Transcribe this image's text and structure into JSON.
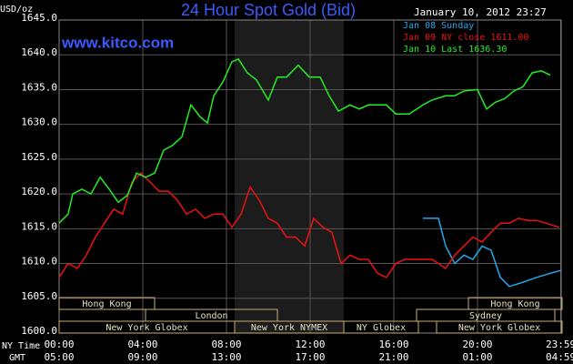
{
  "chart_data": {
    "type": "line",
    "title": "24 Hour Spot Gold (Bid)",
    "timestamp": "January 10, 2012 23:27",
    "source": "www.kitco.com",
    "ylabel": "USD/oz",
    "x_row_labels": [
      "NY Time",
      "GMT"
    ],
    "xlim": [
      0,
      24
    ],
    "xticks": [
      {
        "value": 0,
        "label": "00:00"
      },
      {
        "value": 4,
        "label": "04:00"
      },
      {
        "value": 8,
        "label": "08:00"
      },
      {
        "value": 12,
        "label": "12:00"
      },
      {
        "value": 16,
        "label": "16:00"
      },
      {
        "value": 20,
        "label": "20:00"
      },
      {
        "value": 23.98,
        "label": "23:59"
      }
    ],
    "gmt_ticks": [
      {
        "value": 0,
        "label": "05:00"
      },
      {
        "value": 4,
        "label": "09:00"
      },
      {
        "value": 8,
        "label": "13:00"
      },
      {
        "value": 12,
        "label": "17:00"
      },
      {
        "value": 16,
        "label": "21:00"
      },
      {
        "value": 20,
        "label": "01:00"
      },
      {
        "value": 23.98,
        "label": "04:59"
      }
    ],
    "ylim": [
      1600,
      1645
    ],
    "yticks": [
      {
        "value": 1600,
        "label": "1600.0"
      },
      {
        "value": 1605,
        "label": "1605.0"
      },
      {
        "value": 1610,
        "label": "1610.0"
      },
      {
        "value": 1615,
        "label": "1615.0"
      },
      {
        "value": 1620,
        "label": "1620.0"
      },
      {
        "value": 1625,
        "label": "1625.0"
      },
      {
        "value": 1630,
        "label": "1630.0"
      },
      {
        "value": 1635,
        "label": "1635.0"
      },
      {
        "value": 1640,
        "label": "1640.0"
      },
      {
        "value": 1645,
        "label": "1645.0"
      }
    ],
    "grid": true,
    "sessions": [
      "Hong Kong",
      "London",
      "New York Globex",
      "New York NYMEX",
      "NY Globex",
      "Sydney",
      "Hong Kong",
      "New York Globex"
    ],
    "series": [
      {
        "name": "Jan 08 Sunday",
        "color": "#22aaee",
        "x": [
          17.39,
          18.13,
          18.48,
          18.91,
          19.35,
          19.78,
          20.22,
          20.65,
          21.09,
          21.52,
          22.17,
          22.83,
          23.48,
          23.98
        ],
        "values": [
          1616.5,
          1616.5,
          1612.5,
          1610,
          1611.2,
          1610.6,
          1612.5,
          1611.9,
          1608,
          1606.7,
          1607.3,
          1608,
          1608.6,
          1609
        ]
      },
      {
        "name": "Jan 09 NY close 1611.00",
        "color": "#ee1111",
        "x": [
          0,
          0.43,
          0.87,
          1.3,
          1.74,
          2.17,
          2.61,
          3.04,
          3.48,
          3.91,
          4.35,
          4.78,
          5.22,
          5.65,
          6.09,
          6.52,
          6.96,
          7.39,
          7.83,
          8.26,
          8.7,
          9.13,
          9.57,
          10,
          10.43,
          10.87,
          11.3,
          11.74,
          12.17,
          12.61,
          13.04,
          13.48,
          13.91,
          14.35,
          14.78,
          15.22,
          15.65,
          16.09,
          16.52,
          17.17,
          17.83,
          18.48,
          18.91,
          19.35,
          19.78,
          20.22,
          20.65,
          21.09,
          21.52,
          21.96,
          22.39,
          22.83,
          23.26,
          23.91
        ],
        "values": [
          1608,
          1610,
          1609.3,
          1611.2,
          1613.8,
          1615.8,
          1617.8,
          1617.1,
          1621.7,
          1623,
          1621.7,
          1620.4,
          1620.4,
          1619.1,
          1617.1,
          1617.8,
          1616.5,
          1617.1,
          1617.1,
          1615.2,
          1617.1,
          1621,
          1619.1,
          1616.5,
          1615.8,
          1613.8,
          1613.8,
          1612.5,
          1616.5,
          1615.2,
          1614.5,
          1610,
          1611.2,
          1610.6,
          1610.6,
          1608.6,
          1608,
          1610,
          1610.6,
          1610.6,
          1610.6,
          1609.3,
          1611.2,
          1612.5,
          1613.8,
          1613.1,
          1614.5,
          1615.8,
          1615.8,
          1616.5,
          1616.2,
          1616.2,
          1615.8,
          1615.2
        ]
      },
      {
        "name": "Jan 10 Last 1636.30",
        "color": "#22ee22",
        "x": [
          0,
          0.43,
          0.65,
          1.09,
          1.52,
          1.96,
          2.39,
          2.83,
          3.26,
          3.7,
          4.13,
          4.57,
          5,
          5.43,
          5.87,
          6.3,
          6.74,
          7.09,
          7.39,
          7.83,
          8.26,
          8.57,
          9,
          9.43,
          10,
          10.43,
          10.87,
          11.43,
          11.96,
          12.48,
          12.91,
          13.35,
          13.91,
          14.35,
          14.78,
          15.22,
          15.65,
          16.09,
          16.74,
          17.39,
          17.83,
          18.48,
          18.91,
          19.35,
          20,
          20.43,
          20.87,
          21.3,
          21.74,
          22.17,
          22.61,
          23.04,
          23.48
        ],
        "values": [
          1615.8,
          1617.1,
          1620,
          1620.7,
          1620,
          1622.4,
          1620.7,
          1618.8,
          1619.8,
          1623,
          1622.4,
          1623,
          1626.3,
          1627,
          1628.2,
          1632.8,
          1631.1,
          1630.2,
          1634.1,
          1636.1,
          1639,
          1639.4,
          1637.4,
          1636.4,
          1633.5,
          1636.8,
          1636.8,
          1638.5,
          1636.8,
          1636.8,
          1634.1,
          1631.9,
          1632.8,
          1632.2,
          1632.8,
          1632.8,
          1632.8,
          1631.5,
          1631.5,
          1632.8,
          1633.5,
          1634.1,
          1634.1,
          1634.8,
          1635,
          1632.2,
          1633.2,
          1633.7,
          1634.8,
          1635.4,
          1637.4,
          1637.7,
          1637.1
        ]
      }
    ]
  }
}
